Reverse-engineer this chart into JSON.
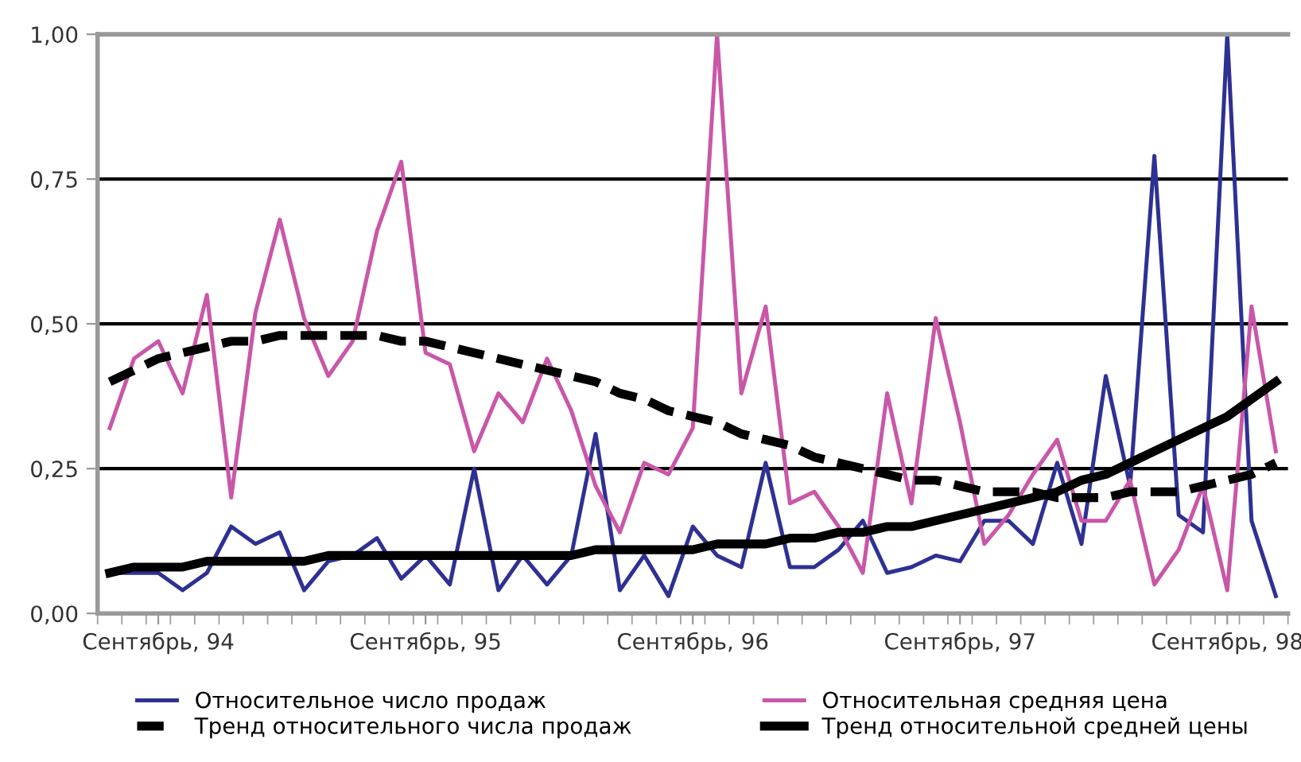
{
  "chart_data": {
    "type": "line",
    "categories": [
      null,
      null,
      "Сентябрь, 94",
      null,
      null,
      null,
      null,
      null,
      null,
      null,
      null,
      null,
      null,
      "Сентябрь, 95",
      null,
      null,
      null,
      null,
      null,
      null,
      null,
      null,
      null,
      null,
      "Сентябрь, 96",
      null,
      null,
      null,
      null,
      null,
      null,
      null,
      null,
      null,
      null,
      "Сентябрь, 97",
      null,
      null,
      null,
      null,
      null,
      null,
      null,
      null,
      null,
      null,
      "Сентябрь, 98",
      null,
      null
    ],
    "series": [
      {
        "name": "Относительное число продаж",
        "color": "#2e3192",
        "values": [
          0.07,
          0.07,
          0.07,
          0.04,
          0.07,
          0.15,
          0.12,
          0.14,
          0.04,
          0.09,
          0.1,
          0.13,
          0.06,
          0.1,
          0.05,
          0.25,
          0.04,
          0.1,
          0.05,
          0.1,
          0.31,
          0.04,
          0.1,
          0.03,
          0.15,
          0.1,
          0.08,
          0.26,
          0.08,
          0.08,
          0.11,
          0.16,
          0.07,
          0.08,
          0.1,
          0.09,
          0.16,
          0.16,
          0.12,
          0.26,
          0.12,
          0.41,
          0.22,
          0.79,
          0.17,
          0.14,
          1.0,
          0.16,
          0.03
        ]
      },
      {
        "name": "Относительная средняя цена",
        "color": "#c957a8",
        "values": [
          0.32,
          0.44,
          0.47,
          0.38,
          0.55,
          0.2,
          0.52,
          0.68,
          0.51,
          0.41,
          0.47,
          0.66,
          0.78,
          0.45,
          0.43,
          0.28,
          0.38,
          0.33,
          0.44,
          0.35,
          0.22,
          0.14,
          0.26,
          0.24,
          0.32,
          1.0,
          0.38,
          0.53,
          0.19,
          0.21,
          0.15,
          0.07,
          0.38,
          0.19,
          0.51,
          0.33,
          0.12,
          0.17,
          0.24,
          0.3,
          0.16,
          0.16,
          0.23,
          0.05,
          0.11,
          0.22,
          0.04,
          0.53,
          0.28
        ]
      },
      {
        "name": "Тренд относительного числа продаж",
        "color": "#000000",
        "line_style": "dashed",
        "values": [
          0.4,
          0.42,
          0.44,
          0.45,
          0.46,
          0.47,
          0.47,
          0.48,
          0.48,
          0.48,
          0.48,
          0.48,
          0.47,
          0.47,
          0.46,
          0.45,
          0.44,
          0.43,
          0.42,
          0.41,
          0.4,
          0.38,
          0.37,
          0.35,
          0.34,
          0.33,
          0.31,
          0.3,
          0.29,
          0.27,
          0.26,
          0.25,
          0.24,
          0.23,
          0.23,
          0.22,
          0.21,
          0.21,
          0.21,
          0.2,
          0.2,
          0.2,
          0.21,
          0.21,
          0.21,
          0.22,
          0.23,
          0.24,
          0.26
        ]
      },
      {
        "name": "Тренд относительной средней цены",
        "color": "#000000",
        "line_style": "solid",
        "values": [
          0.07,
          0.08,
          0.08,
          0.08,
          0.09,
          0.09,
          0.09,
          0.09,
          0.09,
          0.1,
          0.1,
          0.1,
          0.1,
          0.1,
          0.1,
          0.1,
          0.1,
          0.1,
          0.1,
          0.1,
          0.11,
          0.11,
          0.11,
          0.11,
          0.11,
          0.12,
          0.12,
          0.12,
          0.13,
          0.13,
          0.14,
          0.14,
          0.15,
          0.15,
          0.16,
          0.17,
          0.18,
          0.19,
          0.2,
          0.21,
          0.23,
          0.24,
          0.26,
          0.28,
          0.3,
          0.32,
          0.34,
          0.37,
          0.4
        ]
      }
    ],
    "ylim": [
      0,
      1
    ],
    "yticks": [
      {
        "value": 0,
        "label": "0,00"
      },
      {
        "value": 0.25,
        "label": "0,25"
      },
      {
        "value": 0.5,
        "label": "0,50"
      },
      {
        "value": 0.75,
        "label": "0,75"
      },
      {
        "value": 1,
        "label": "1,00"
      }
    ],
    "grid": "y",
    "legend": "bottom",
    "marker": "none"
  }
}
